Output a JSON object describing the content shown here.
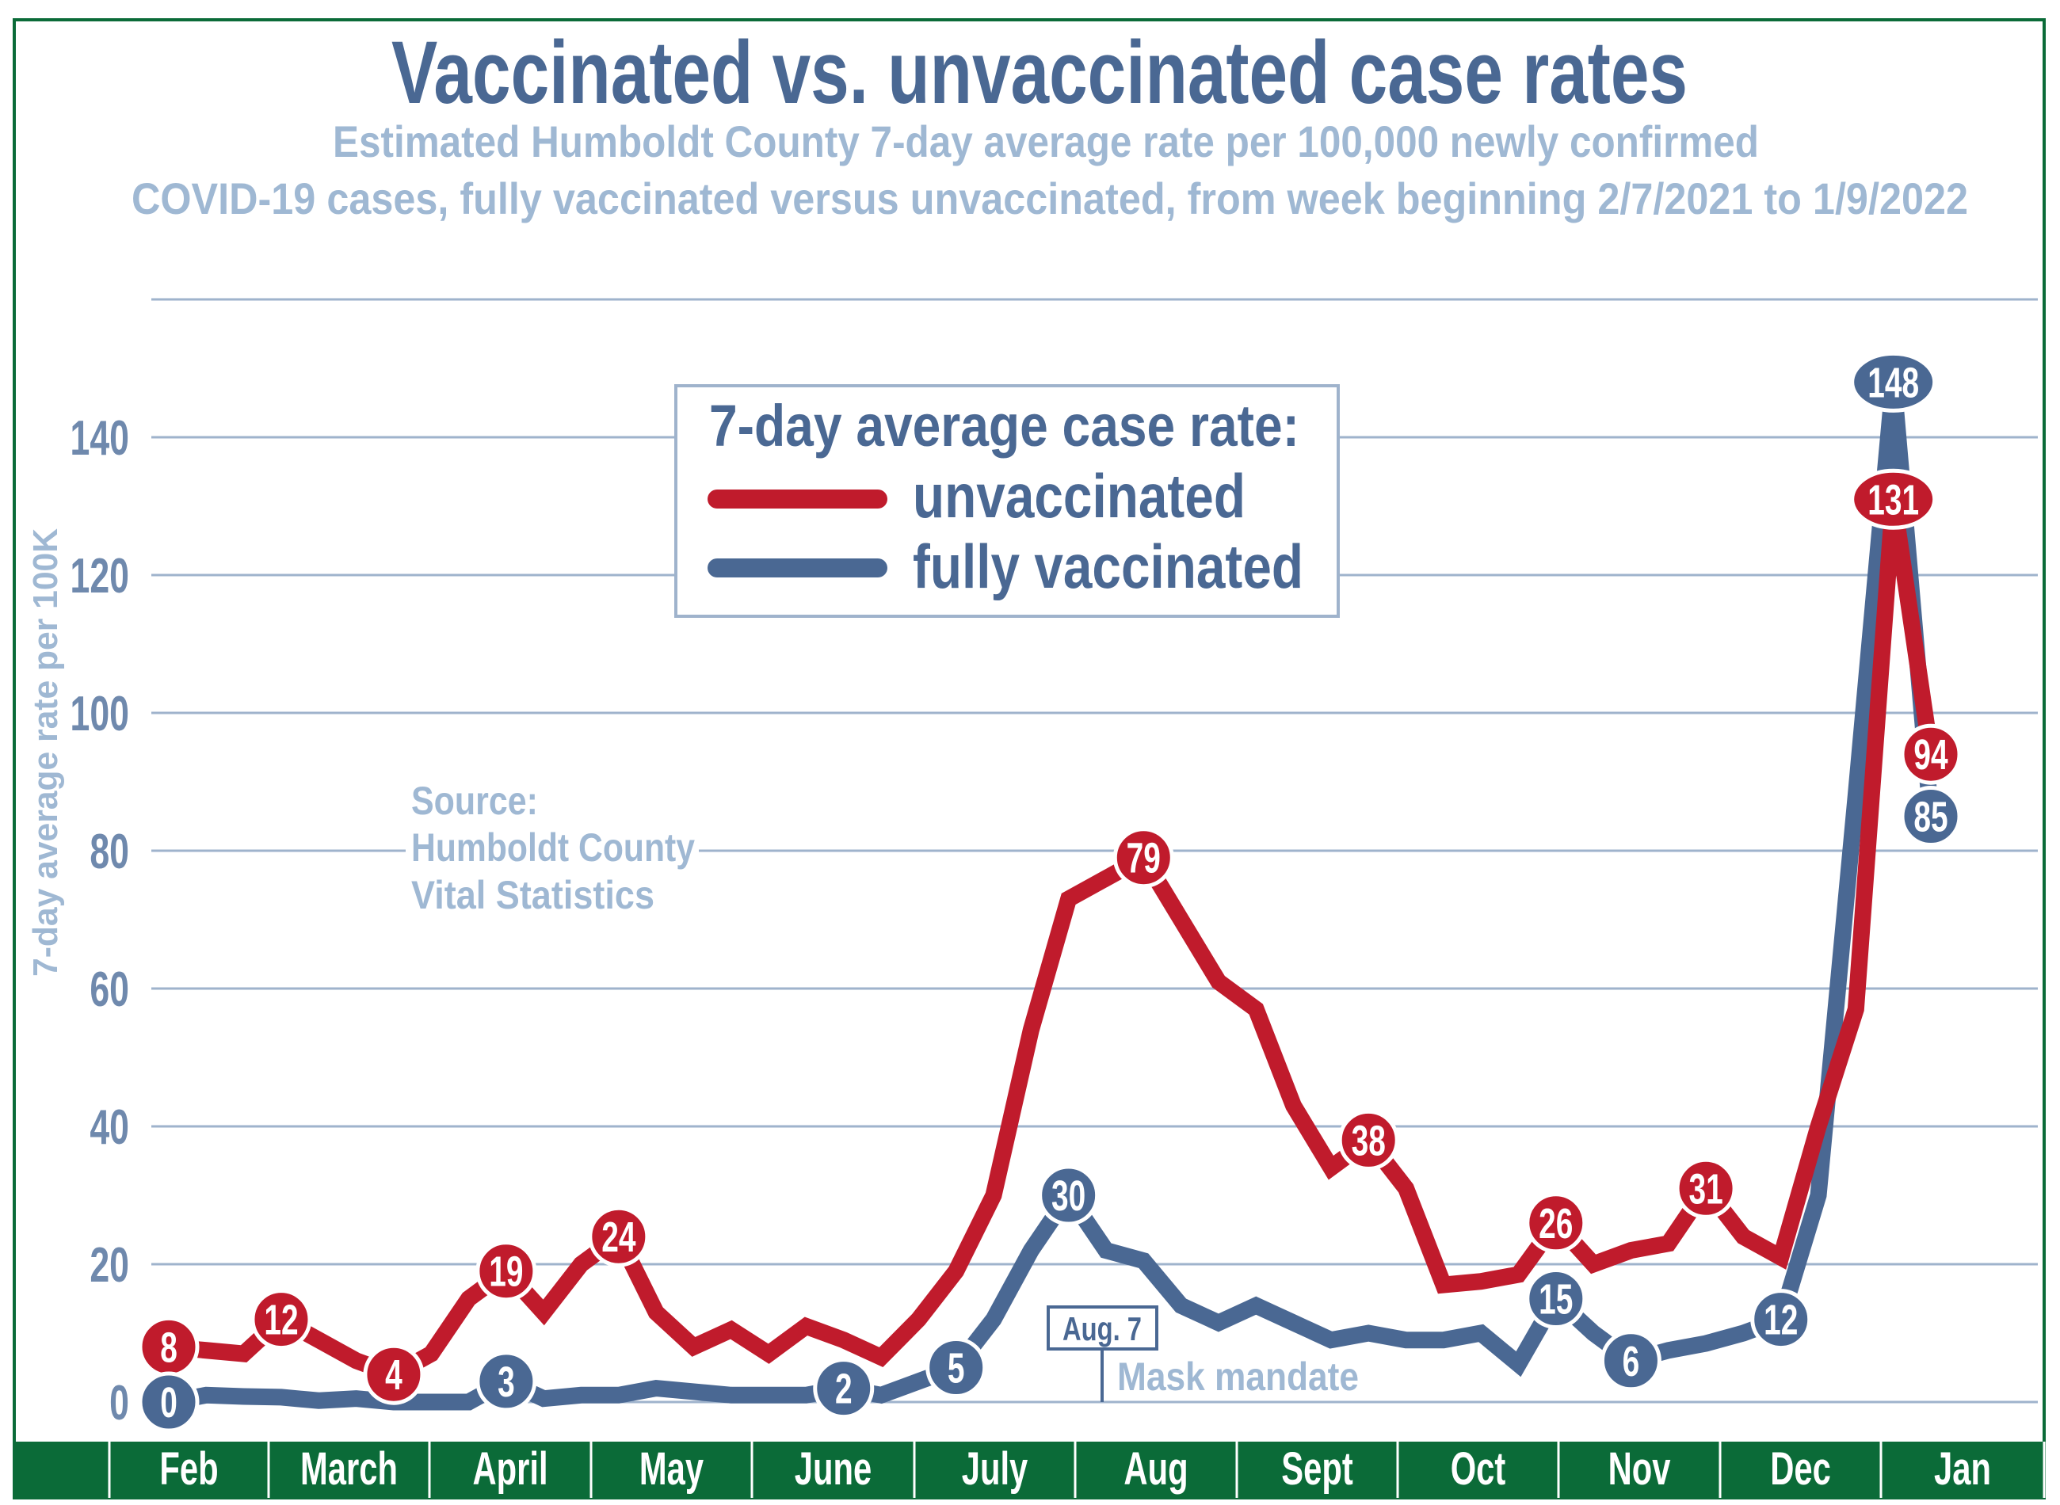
{
  "colors": {
    "unvaccinated": "#c01b2c",
    "vaccinated": "#4a6893",
    "subtitle": "#9fb8d3",
    "grid": "#9fb3cc",
    "frame": "#0b6b38",
    "month_band": "#0b6b38"
  },
  "chart_data": {
    "type": "line",
    "title": "Vaccinated vs. unvaccinated case rates",
    "subtitle_line1": "Estimated Humboldt County 7-day average rate per 100,000 newly confirmed",
    "subtitle_line2": "COVID-19 cases,  fully vaccinated versus unvaccinated, from week beginning 2/7/2021 to 1/9/2022",
    "ylabel": "7-day average rate per 100K",
    "ylim": [
      0,
      160
    ],
    "yticks": [
      "0",
      "20",
      "40",
      "60",
      "80",
      "100",
      "120",
      "140"
    ],
    "ytick_values": [
      0,
      20,
      40,
      60,
      80,
      100,
      120,
      140
    ],
    "grid": true,
    "x_categories": [
      "Feb",
      "March",
      "April",
      "May",
      "June",
      "July",
      "Aug",
      "Sept",
      "Oct",
      "Nov",
      "Dec",
      "Jan"
    ],
    "legend": {
      "title": "7-day average case rate:",
      "placement": "top-center",
      "entries": [
        "unvaccinated",
        "fully vaccinated"
      ]
    },
    "series": [
      {
        "name": "unvaccinated",
        "color": "#c01b2c",
        "values": [
          8,
          7.5,
          7,
          12,
          9,
          6,
          4,
          7,
          15,
          19,
          13,
          20,
          24,
          13,
          8,
          10.5,
          7,
          11,
          9,
          6.5,
          12,
          19,
          30,
          54,
          73,
          76,
          79,
          70,
          61,
          57,
          43,
          34,
          38,
          31,
          17,
          17.5,
          18.5,
          26,
          20,
          22,
          23,
          31,
          24,
          21,
          40,
          57,
          131,
          94
        ],
        "labels": [
          {
            "week": 0,
            "text": "8"
          },
          {
            "week": 3,
            "text": "12"
          },
          {
            "week": 6,
            "text": "4"
          },
          {
            "week": 9,
            "text": "19"
          },
          {
            "week": 12,
            "text": "24"
          },
          {
            "week": 26,
            "text": "79"
          },
          {
            "week": 32,
            "text": "38"
          },
          {
            "week": 37,
            "text": "26"
          },
          {
            "week": 41,
            "text": "31"
          },
          {
            "week": 46,
            "text": "131"
          },
          {
            "week": 47,
            "text": "94"
          }
        ]
      },
      {
        "name": "fully vaccinated",
        "color": "#4a6893",
        "values": [
          0,
          1,
          0.8,
          0.7,
          0.2,
          0.5,
          0,
          0,
          0,
          3,
          0.5,
          1,
          1,
          2,
          1.5,
          1,
          1,
          1,
          2,
          1,
          3,
          5,
          12,
          22,
          30,
          22,
          20.5,
          14,
          11.5,
          14,
          11.5,
          9,
          10,
          9,
          9,
          10,
          5.5,
          15,
          10,
          6,
          7.5,
          8.5,
          10,
          12,
          30,
          88,
          148,
          85
        ],
        "labels": [
          {
            "week": 0,
            "text": "0"
          },
          {
            "week": 9,
            "text": "3"
          },
          {
            "week": 18,
            "text": "2"
          },
          {
            "week": 21,
            "text": "5"
          },
          {
            "week": 24,
            "text": "30"
          },
          {
            "week": 37,
            "text": "15"
          },
          {
            "week": 39,
            "text": "6"
          },
          {
            "week": 43,
            "text": "12"
          },
          {
            "week": 46,
            "text": "148"
          },
          {
            "week": 47,
            "text": "85"
          }
        ]
      }
    ],
    "annotations": {
      "source_line1": "Source:",
      "source_line2": "Humboldt County",
      "source_line3": "Vital Statistics",
      "mandate_date": "Aug. 7",
      "mandate_label": "Mask mandate"
    }
  }
}
